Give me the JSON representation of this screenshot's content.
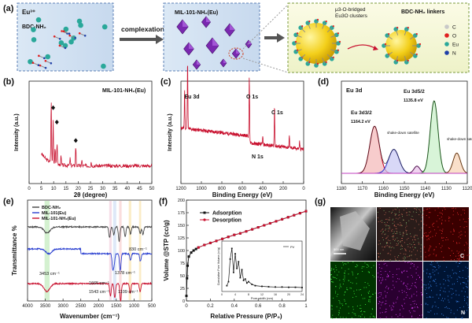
{
  "figure": {
    "panels": {
      "a": "(a)",
      "b": "(b)",
      "c": "(c)",
      "d": "(d)",
      "e": "(e)",
      "f": "(f)",
      "g": "(g)"
    }
  },
  "panel_a": {
    "ion_label": "Eu³⁺",
    "linker_label": "BDC-NH₂",
    "arrow_label": "complexation",
    "mof_label": "MIL-101-NH₂(Eu)",
    "cluster_label_1": "μ3-O-bridged",
    "cluster_label_2": "Eu3O clusters",
    "linker_title": "BDC-NH₂ linkers",
    "legend": [
      {
        "sym": "C",
        "color": "#c8c8c8"
      },
      {
        "sym": "O",
        "color": "#e02020"
      },
      {
        "sym": "Eu",
        "color": "#2aa89a"
      },
      {
        "sym": "N",
        "color": "#1f3fa8"
      }
    ]
  },
  "panel_g": {
    "scale_label": "500 nm",
    "map_label_c": "C",
    "map_label_n": "N"
  },
  "chart_data": [
    {
      "id": "b",
      "type": "line",
      "title": "MIL-101-NH₂(Eu)",
      "xlabel": "2θ (degree)",
      "ylabel": "Intensity (a.u.)",
      "xlim": [
        0,
        50
      ],
      "xticks": [
        0,
        5,
        10,
        15,
        20,
        25,
        30,
        35,
        40,
        45,
        50
      ],
      "markers": [
        {
          "x": 9.8,
          "y": 0.74
        },
        {
          "x": 11.3,
          "y": 0.6
        },
        {
          "x": 19.0,
          "y": 0.42
        }
      ],
      "color": "#c8102e"
    },
    {
      "id": "c",
      "type": "line",
      "xlabel": "Binding Energy (eV)",
      "ylabel": "Intensity (a.u.)",
      "xlim": [
        1200,
        0
      ],
      "xticks": [
        1200,
        1000,
        800,
        600,
        400,
        200,
        0
      ],
      "annotations": [
        {
          "text": "Eu 3d",
          "x": 1135
        },
        {
          "text": "O 1s",
          "x": 531
        },
        {
          "text": "N 1s",
          "x": 400
        },
        {
          "text": "C 1s",
          "x": 285
        }
      ],
      "color": "#c8102e"
    },
    {
      "id": "d",
      "type": "line",
      "title": "Eu 3d",
      "xlabel": "Binding Energy (eV)",
      "xlim": [
        1180,
        1120
      ],
      "xticks": [
        1180,
        1170,
        1160,
        1150,
        1140,
        1130,
        1120
      ],
      "annotations": [
        {
          "text": "Eu 3d3/2",
          "x": 1164.2
        },
        {
          "text": "1164.2 eV",
          "x": 1164.2
        },
        {
          "text": "Eu 3d5/2",
          "x": 1135.8
        },
        {
          "text": "1135.8 eV",
          "x": 1135.8
        },
        {
          "text": "shake-down satellite",
          "x": 1155
        },
        {
          "text": "shake-down satellite",
          "x": 1125
        }
      ],
      "series": [
        {
          "name": "Eu 3d3/2",
          "center": 1164.2,
          "color": "#c8102e"
        },
        {
          "name": "shake-down satellite",
          "center": 1155,
          "color": "#3a3fd0"
        },
        {
          "name": "satellite",
          "center": 1144,
          "color": "#b030b0"
        },
        {
          "name": "Eu 3d5/2",
          "center": 1135.8,
          "color": "#3cb83c"
        },
        {
          "name": "shake-down satellite",
          "center": 1125,
          "color": "#e07a2a"
        }
      ]
    },
    {
      "id": "e",
      "type": "line",
      "xlabel": "Wavenumber (cm⁻¹)",
      "ylabel": "Transmittance %",
      "xlim": [
        4000,
        500
      ],
      "xticks": [
        4000,
        3500,
        3000,
        2500,
        2000,
        1500,
        1000,
        500
      ],
      "series": [
        {
          "name": "BDC-NH₂",
          "color": "#444444"
        },
        {
          "name": "MIL-101(Eu)",
          "color": "#2a3fd0"
        },
        {
          "name": "MIL-101-NH₂(Eu)",
          "color": "#c8102e"
        }
      ],
      "annotations": [
        {
          "text": "3453 cm⁻¹",
          "x": 3453
        },
        {
          "text": "1665 cm⁻¹",
          "x": 1665
        },
        {
          "text": "1543 cm⁻¹",
          "x": 1543
        },
        {
          "text": "1378 cm⁻¹",
          "x": 1378
        },
        {
          "text": "1109 cm⁻¹",
          "x": 1109
        },
        {
          "text": "830 cm⁻¹",
          "x": 830
        }
      ]
    },
    {
      "id": "f",
      "type": "line",
      "xlabel": "Relative Pressure (P/P₀)",
      "ylabel": "Volume @STP (cc/g)",
      "xlim": [
        0,
        1.0
      ],
      "ylim": [
        0,
        200
      ],
      "xticks": [
        0.0,
        0.2,
        0.4,
        0.6,
        0.8,
        1.0
      ],
      "yticks": [
        0,
        25,
        50,
        75,
        100,
        125,
        150,
        175,
        200
      ],
      "series": [
        {
          "name": "Adsorption",
          "color": "#111111",
          "x": [
            0.0,
            0.005,
            0.01,
            0.02,
            0.04,
            0.06,
            0.08,
            0.1,
            0.15,
            0.2,
            0.25,
            0.3,
            0.35,
            0.4,
            0.45,
            0.5,
            0.55,
            0.6,
            0.65,
            0.7,
            0.75,
            0.8,
            0.85,
            0.9,
            0.95,
            1.0
          ],
          "y": [
            10,
            45,
            70,
            88,
            96,
            100,
            103,
            106,
            111,
            115,
            119,
            123,
            127,
            131,
            134,
            138,
            142,
            146,
            150,
            154,
            158,
            162,
            166,
            170,
            174,
            178
          ]
        },
        {
          "name": "Desorption",
          "color": "#c8102e",
          "x": [
            1.0,
            0.95,
            0.9,
            0.85,
            0.8,
            0.75,
            0.7,
            0.65,
            0.6,
            0.55,
            0.5,
            0.45,
            0.4,
            0.35,
            0.3,
            0.25,
            0.2,
            0.15,
            0.1
          ],
          "y": [
            178,
            174,
            170,
            166,
            162,
            158,
            154,
            150,
            146,
            142,
            138,
            134,
            131,
            127,
            123,
            119,
            115,
            111,
            106
          ]
        }
      ],
      "inset": {
        "xlabel": "Pore width (nm)",
        "ylabel": "Cumulative Pore Volume (cc/g)",
        "legend": "PV",
        "xticks": [
          0,
          4,
          8,
          12,
          16,
          20,
          24
        ],
        "x": [
          1.5,
          2,
          2.5,
          3,
          3.5,
          4,
          4.5,
          5,
          5.5,
          6,
          6.5,
          7,
          7.5,
          8,
          9,
          10,
          12,
          14,
          16,
          18,
          20,
          22,
          24
        ],
        "y": [
          0.02,
          0.05,
          0.22,
          0.3,
          0.12,
          0.26,
          0.15,
          0.2,
          0.08,
          0.14,
          0.06,
          0.07,
          0.04,
          0.05,
          0.03,
          0.02,
          0.015,
          0.012,
          0.01,
          0.01,
          0.008,
          0.008,
          0.006
        ]
      }
    }
  ]
}
